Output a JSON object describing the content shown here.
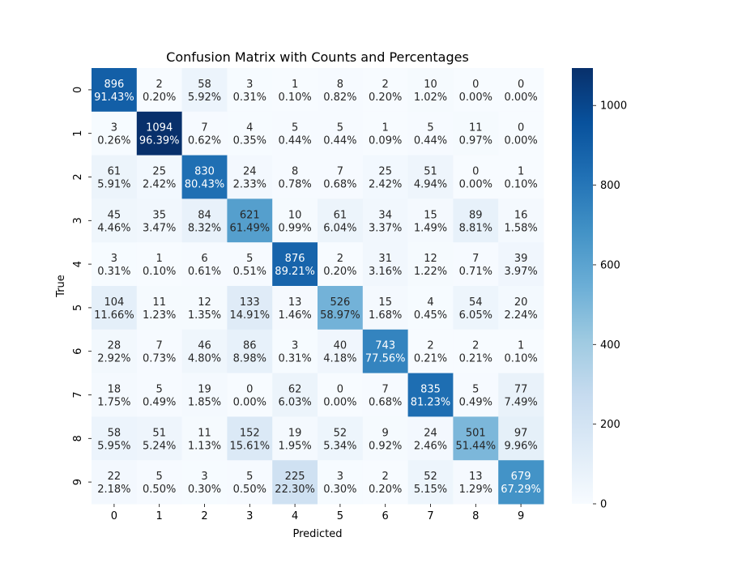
{
  "chart_data": {
    "type": "heatmap",
    "title": "Confusion Matrix with Counts and Percentages",
    "xlabel": "Predicted",
    "ylabel": "True",
    "x_categories": [
      "0",
      "1",
      "2",
      "3",
      "4",
      "5",
      "6",
      "7",
      "8",
      "9"
    ],
    "y_categories": [
      "0",
      "1",
      "2",
      "3",
      "4",
      "5",
      "6",
      "7",
      "8",
      "9"
    ],
    "values": [
      [
        896,
        2,
        58,
        3,
        1,
        8,
        2,
        10,
        0,
        0
      ],
      [
        3,
        1094,
        7,
        4,
        5,
        5,
        1,
        5,
        11,
        0
      ],
      [
        61,
        25,
        830,
        24,
        8,
        7,
        25,
        51,
        0,
        1
      ],
      [
        45,
        35,
        84,
        621,
        10,
        61,
        34,
        15,
        89,
        16
      ],
      [
        3,
        1,
        6,
        5,
        876,
        2,
        31,
        12,
        7,
        39
      ],
      [
        104,
        11,
        12,
        133,
        13,
        526,
        15,
        4,
        54,
        20
      ],
      [
        28,
        7,
        46,
        86,
        3,
        40,
        743,
        2,
        2,
        1
      ],
      [
        18,
        5,
        19,
        0,
        62,
        0,
        7,
        835,
        5,
        77
      ],
      [
        58,
        51,
        11,
        152,
        19,
        52,
        9,
        24,
        501,
        97
      ],
      [
        22,
        5,
        3,
        5,
        225,
        3,
        2,
        52,
        13,
        679
      ]
    ],
    "percentages": [
      [
        "91.43%",
        "0.20%",
        "5.92%",
        "0.31%",
        "0.10%",
        "0.82%",
        "0.20%",
        "1.02%",
        "0.00%",
        "0.00%"
      ],
      [
        "0.26%",
        "96.39%",
        "0.62%",
        "0.35%",
        "0.44%",
        "0.44%",
        "0.09%",
        "0.44%",
        "0.97%",
        "0.00%"
      ],
      [
        "5.91%",
        "2.42%",
        "80.43%",
        "2.33%",
        "0.78%",
        "0.68%",
        "2.42%",
        "4.94%",
        "0.00%",
        "0.10%"
      ],
      [
        "4.46%",
        "3.47%",
        "8.32%",
        "61.49%",
        "0.99%",
        "6.04%",
        "3.37%",
        "1.49%",
        "8.81%",
        "1.58%"
      ],
      [
        "0.31%",
        "0.10%",
        "0.61%",
        "0.51%",
        "89.21%",
        "0.20%",
        "3.16%",
        "1.22%",
        "0.71%",
        "3.97%"
      ],
      [
        "11.66%",
        "1.23%",
        "1.35%",
        "14.91%",
        "1.46%",
        "58.97%",
        "1.68%",
        "0.45%",
        "6.05%",
        "2.24%"
      ],
      [
        "2.92%",
        "0.73%",
        "4.80%",
        "8.98%",
        "0.31%",
        "4.18%",
        "77.56%",
        "0.21%",
        "0.21%",
        "0.10%"
      ],
      [
        "1.75%",
        "0.49%",
        "1.85%",
        "0.00%",
        "6.03%",
        "0.00%",
        "0.68%",
        "81.23%",
        "0.49%",
        "7.49%"
      ],
      [
        "5.95%",
        "5.24%",
        "1.13%",
        "15.61%",
        "1.95%",
        "5.34%",
        "0.92%",
        "2.46%",
        "51.44%",
        "9.96%"
      ],
      [
        "2.18%",
        "0.50%",
        "0.30%",
        "0.50%",
        "22.30%",
        "0.30%",
        "0.20%",
        "5.15%",
        "1.29%",
        "67.29%"
      ]
    ],
    "colormap": "Blues",
    "colorbar": {
      "min": 0,
      "max": 1094,
      "ticks": [
        0,
        200,
        400,
        600,
        800,
        1000
      ]
    },
    "grid": false,
    "colors": {
      "low": "#f7fbff",
      "high": "#08306b",
      "text_dark": "#262626",
      "text_light": "#ffffff"
    }
  }
}
